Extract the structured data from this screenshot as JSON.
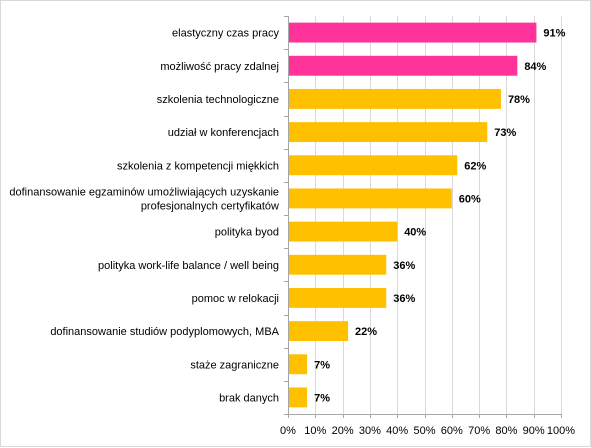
{
  "chart_data": {
    "type": "bar",
    "orientation": "horizontal",
    "categories": [
      [
        "elastyczny czas pracy"
      ],
      [
        "możliwość pracy zdalnej"
      ],
      [
        "szkolenia technologiczne"
      ],
      [
        "udział w konferencjach"
      ],
      [
        "szkolenia z kompetencji miękkich"
      ],
      [
        "dofinansowanie egzaminów umożliwiających uzyskanie",
        "profesjonalnych certyfikatów"
      ],
      [
        "polityka byod"
      ],
      [
        "polityka work-life balance / well being"
      ],
      [
        "pomoc w relokacji"
      ],
      [
        "dofinansowanie studiów podyplomowych, MBA"
      ],
      [
        "staże zagraniczne"
      ],
      [
        "brak danych"
      ]
    ],
    "values": [
      91,
      84,
      78,
      73,
      62,
      60,
      40,
      36,
      36,
      22,
      7,
      7
    ],
    "value_labels": [
      "91%",
      "84%",
      "78%",
      "73%",
      "62%",
      "60%",
      "40%",
      "36%",
      "36%",
      "22%",
      "7%",
      "7%"
    ],
    "bar_colors": [
      "#ff3399",
      "#ff3399",
      "#ffc000",
      "#ffc000",
      "#ffc000",
      "#ffc000",
      "#ffc000",
      "#ffc000",
      "#ffc000",
      "#ffc000",
      "#ffc000",
      "#ffc000"
    ],
    "xlim": [
      0,
      100
    ],
    "x_ticks": [
      0,
      10,
      20,
      30,
      40,
      50,
      60,
      70,
      80,
      90,
      100
    ],
    "x_tick_labels": [
      "0%",
      "10%",
      "20%",
      "30%",
      "40%",
      "50%",
      "60%",
      "70%",
      "80%",
      "90%",
      "100%"
    ],
    "grid": "vertical",
    "grid_color": "#d9d9d9",
    "axis_color": "#a6a6a6",
    "title": "",
    "xlabel": "",
    "ylabel": ""
  }
}
